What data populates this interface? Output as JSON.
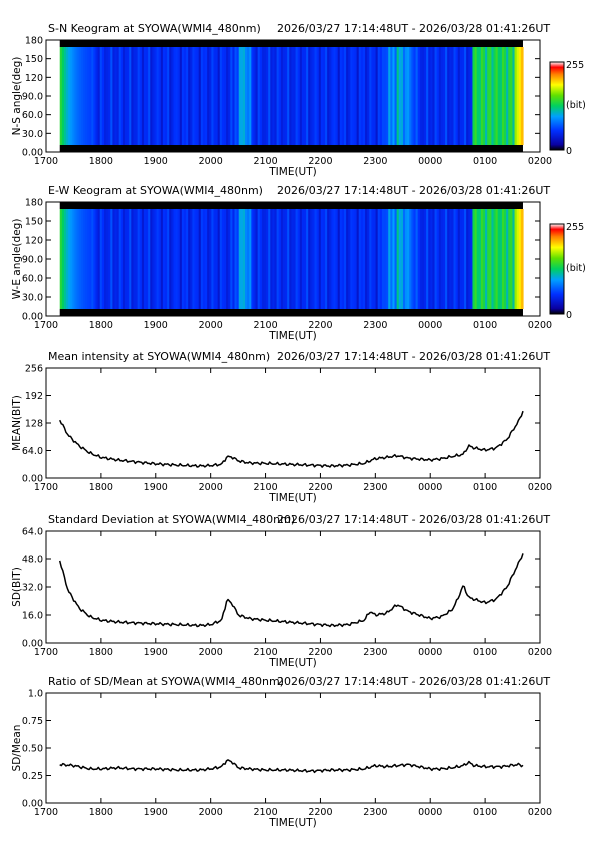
{
  "time_range": "2026/03/27 17:14:48UT - 2026/03/28 01:41:26UT",
  "x_axis": {
    "label": "TIME(UT)",
    "ticks": [
      "1700",
      "1800",
      "1900",
      "2000",
      "2100",
      "2200",
      "2300",
      "0000",
      "0100",
      "0200"
    ]
  },
  "colors": {
    "line": "#000000",
    "frame": "#000000"
  },
  "chart_data": [
    {
      "type": "heatmap",
      "title": "S-N Keogram at SYOWA(WMI4_480nm)",
      "ylabel": "N-S angle(deg)",
      "yticks": [
        "180",
        "150",
        "120",
        "90.0",
        "60.0",
        "30.0",
        "0.00"
      ],
      "ylim": [
        0,
        180
      ],
      "xlim_hours": [
        17.0,
        26.0
      ],
      "data_range_hours": [
        17.25,
        25.69
      ],
      "colorbar": {
        "max_label": "255",
        "unit_label": "(bit)",
        "min_label": "0",
        "scale": "rainbow"
      },
      "bright_intervals_ut": [
        "2025-2045",
        "2305-2345",
        "0045-0140"
      ]
    },
    {
      "type": "heatmap",
      "title": "E-W Keogram at SYOWA(WMI4_480nm)",
      "ylabel": "W-E angle(deg)",
      "yticks": [
        "180",
        "150",
        "120",
        "90.0",
        "60.0",
        "30.0",
        "0.00"
      ],
      "ylim": [
        0,
        180
      ],
      "xlim_hours": [
        17.0,
        26.0
      ],
      "data_range_hours": [
        17.25,
        25.69
      ],
      "colorbar": {
        "max_label": "255",
        "unit_label": "(bit)",
        "min_label": "0",
        "scale": "rainbow"
      },
      "bright_intervals_ut": [
        "2025-2045",
        "2305-2345",
        "0045-0140"
      ]
    },
    {
      "type": "line",
      "title": "Mean intensity at SYOWA(WMI4_480nm)",
      "ylabel": "MEAN(BIT)",
      "yticks": [
        "256",
        "192",
        "128",
        "64.0",
        "0.00"
      ],
      "ylim": [
        0,
        256
      ],
      "xlim_hours": [
        17.0,
        26.0
      ],
      "x": [
        17.25,
        17.4,
        17.6,
        17.8,
        18.0,
        18.3,
        18.6,
        19.0,
        19.4,
        19.8,
        20.0,
        20.2,
        20.3,
        20.4,
        20.5,
        20.7,
        21.0,
        21.4,
        21.8,
        22.2,
        22.5,
        22.8,
        22.9,
        23.0,
        23.2,
        23.4,
        23.6,
        23.8,
        24.0,
        24.2,
        24.4,
        24.6,
        24.7,
        24.8,
        25.0,
        25.2,
        25.4,
        25.6,
        25.69
      ],
      "values": [
        135,
        100,
        75,
        58,
        48,
        42,
        38,
        33,
        30,
        28,
        29,
        32,
        50,
        48,
        40,
        35,
        34,
        32,
        30,
        28,
        30,
        34,
        40,
        45,
        48,
        52,
        46,
        44,
        42,
        45,
        50,
        55,
        75,
        70,
        65,
        70,
        90,
        130,
        155
      ]
    },
    {
      "type": "line",
      "title": "Standard Deviation at SYOWA(WMI4_480nm)",
      "ylabel": "SD(BIT)",
      "yticks": [
        "64.0",
        "48.0",
        "32.0",
        "16.0",
        "0.00"
      ],
      "ylim": [
        0,
        64
      ],
      "xlim_hours": [
        17.0,
        26.0
      ],
      "x": [
        17.25,
        17.4,
        17.6,
        17.8,
        18.0,
        18.3,
        18.6,
        19.0,
        19.4,
        19.8,
        20.0,
        20.2,
        20.3,
        20.4,
        20.5,
        20.7,
        21.0,
        21.4,
        21.8,
        22.2,
        22.5,
        22.8,
        22.9,
        23.0,
        23.2,
        23.4,
        23.6,
        23.8,
        24.0,
        24.2,
        24.4,
        24.5,
        24.6,
        24.7,
        24.8,
        25.0,
        25.2,
        25.4,
        25.6,
        25.69
      ],
      "values": [
        47,
        30,
        20,
        15,
        13,
        12,
        11.5,
        11,
        10.5,
        10,
        10.5,
        13,
        25,
        22,
        16,
        14,
        13,
        12,
        11,
        10,
        10.5,
        13,
        18,
        16,
        17,
        22,
        18,
        16,
        14,
        15,
        19,
        25,
        33,
        26,
        25,
        23,
        25,
        32,
        45,
        51
      ]
    },
    {
      "type": "line",
      "title": "Ratio of SD/Mean at SYOWA(WMI4_480nm)",
      "ylabel": "SD/Mean",
      "yticks": [
        "1.0",
        "0.75",
        "0.50",
        "0.25",
        "0.00"
      ],
      "ylim": [
        0,
        1
      ],
      "xlim_hours": [
        17.0,
        26.0
      ],
      "x": [
        17.25,
        17.5,
        17.8,
        18.0,
        18.3,
        18.6,
        19.0,
        19.4,
        19.8,
        20.0,
        20.2,
        20.3,
        20.4,
        20.5,
        20.7,
        21.0,
        21.4,
        21.8,
        22.2,
        22.5,
        22.8,
        23.0,
        23.2,
        23.4,
        23.6,
        23.8,
        24.0,
        24.2,
        24.4,
        24.6,
        24.7,
        24.8,
        25.0,
        25.3,
        25.6,
        25.69
      ],
      "values": [
        0.35,
        0.34,
        0.31,
        0.31,
        0.32,
        0.31,
        0.31,
        0.3,
        0.3,
        0.31,
        0.33,
        0.39,
        0.37,
        0.32,
        0.31,
        0.3,
        0.3,
        0.29,
        0.3,
        0.3,
        0.31,
        0.34,
        0.33,
        0.34,
        0.35,
        0.33,
        0.31,
        0.31,
        0.32,
        0.34,
        0.37,
        0.34,
        0.33,
        0.33,
        0.35,
        0.34
      ]
    }
  ]
}
